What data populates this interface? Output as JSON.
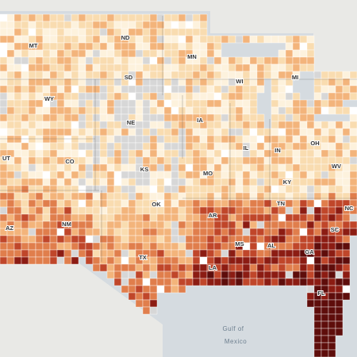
{
  "map": {
    "state_labels": [
      "MT",
      "ND",
      "MN",
      "WI",
      "MI",
      "SD",
      "WY",
      "NE",
      "IA",
      "IL",
      "IN",
      "OH",
      "UT",
      "CO",
      "KS",
      "MO",
      "KY",
      "WV",
      "AZ",
      "NM",
      "OK",
      "AR",
      "TN",
      "NC",
      "SC",
      "TX",
      "MS",
      "AL",
      "GA",
      "LA",
      "FL"
    ],
    "water_labels": [
      "Gulf of",
      "Mexico"
    ]
  }
}
